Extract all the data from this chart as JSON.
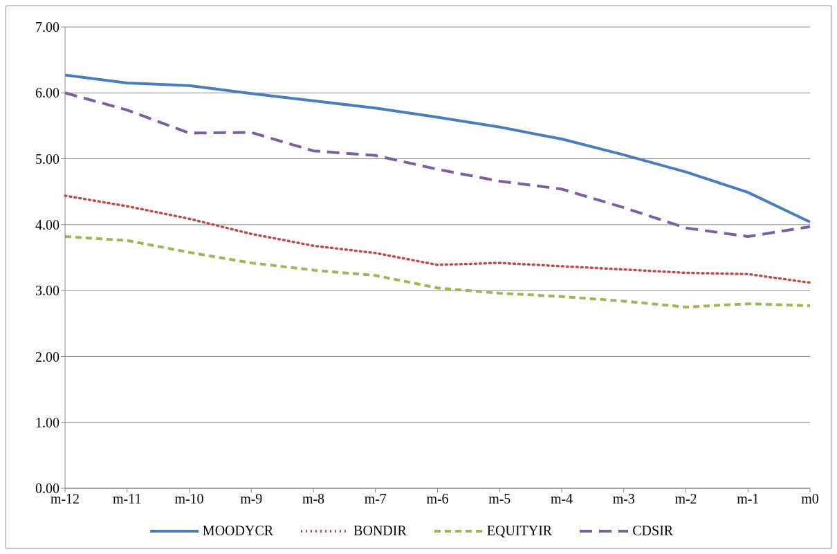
{
  "chart_data": {
    "type": "line",
    "categories": [
      "m-12",
      "m-11",
      "m-10",
      "m-9",
      "m-8",
      "m-7",
      "m-6",
      "m-5",
      "m-4",
      "m-3",
      "m-2",
      "m-1",
      "m0"
    ],
    "series": [
      {
        "name": "MOODYCR",
        "color": "#4a7ebb",
        "line_style": "solid",
        "values": [
          6.27,
          6.15,
          6.11,
          5.99,
          5.88,
          5.77,
          5.63,
          5.48,
          5.3,
          5.06,
          4.8,
          4.49,
          4.04
        ]
      },
      {
        "name": "BONDIR",
        "color": "#be4b48",
        "line_style": "dotted",
        "values": [
          4.44,
          4.28,
          4.09,
          3.86,
          3.68,
          3.57,
          3.39,
          3.42,
          3.37,
          3.32,
          3.27,
          3.25,
          3.12
        ]
      },
      {
        "name": "EQUITYIR",
        "color": "#98b954",
        "line_style": "dashed",
        "values": [
          3.82,
          3.76,
          3.58,
          3.42,
          3.31,
          3.23,
          3.04,
          2.96,
          2.91,
          2.84,
          2.75,
          2.8,
          2.77
        ]
      },
      {
        "name": "CDSIR",
        "color": "#7d5fa0",
        "line_style": "dashed",
        "values": [
          6.0,
          5.74,
          5.39,
          5.4,
          5.12,
          5.05,
          4.84,
          4.66,
          4.54,
          4.26,
          3.95,
          3.82,
          3.97
        ]
      }
    ],
    "ylim": [
      0,
      7
    ],
    "yticks": [
      {
        "value": 0,
        "label": "0.00"
      },
      {
        "value": 1,
        "label": "1.00"
      },
      {
        "value": 2,
        "label": "2.00"
      },
      {
        "value": 3,
        "label": "3.00"
      },
      {
        "value": 4,
        "label": "4.00"
      },
      {
        "value": 5,
        "label": "5.00"
      },
      {
        "value": 6,
        "label": "6.00"
      },
      {
        "value": 7,
        "label": "7.00"
      }
    ],
    "grid": "y",
    "legend": "bottom",
    "marker": "none"
  }
}
